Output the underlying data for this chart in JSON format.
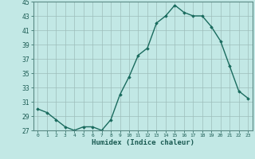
{
  "x": [
    0,
    1,
    2,
    3,
    4,
    5,
    6,
    7,
    8,
    9,
    10,
    11,
    12,
    13,
    14,
    15,
    16,
    17,
    18,
    19,
    20,
    21,
    22,
    23
  ],
  "y": [
    30,
    29.5,
    28.5,
    27.5,
    27,
    27.5,
    27.5,
    27,
    28.5,
    32,
    34.5,
    37.5,
    38.5,
    42,
    43,
    44.5,
    43.5,
    43,
    43,
    41.5,
    39.5,
    36,
    32.5,
    31.5
  ],
  "xlabel": "Humidex (Indice chaleur)",
  "ylim": [
    27,
    45
  ],
  "yticks": [
    27,
    29,
    31,
    33,
    35,
    37,
    39,
    41,
    43,
    45
  ],
  "xticks": [
    0,
    1,
    2,
    3,
    4,
    5,
    6,
    7,
    8,
    9,
    10,
    11,
    12,
    13,
    14,
    15,
    16,
    17,
    18,
    19,
    20,
    21,
    22,
    23
  ],
  "line_color": "#1a6b5e",
  "bg_color": "#c2e8e5",
  "grid_color": "#9dbdba",
  "marker": "D",
  "marker_size": 1.8,
  "line_width": 1.0
}
